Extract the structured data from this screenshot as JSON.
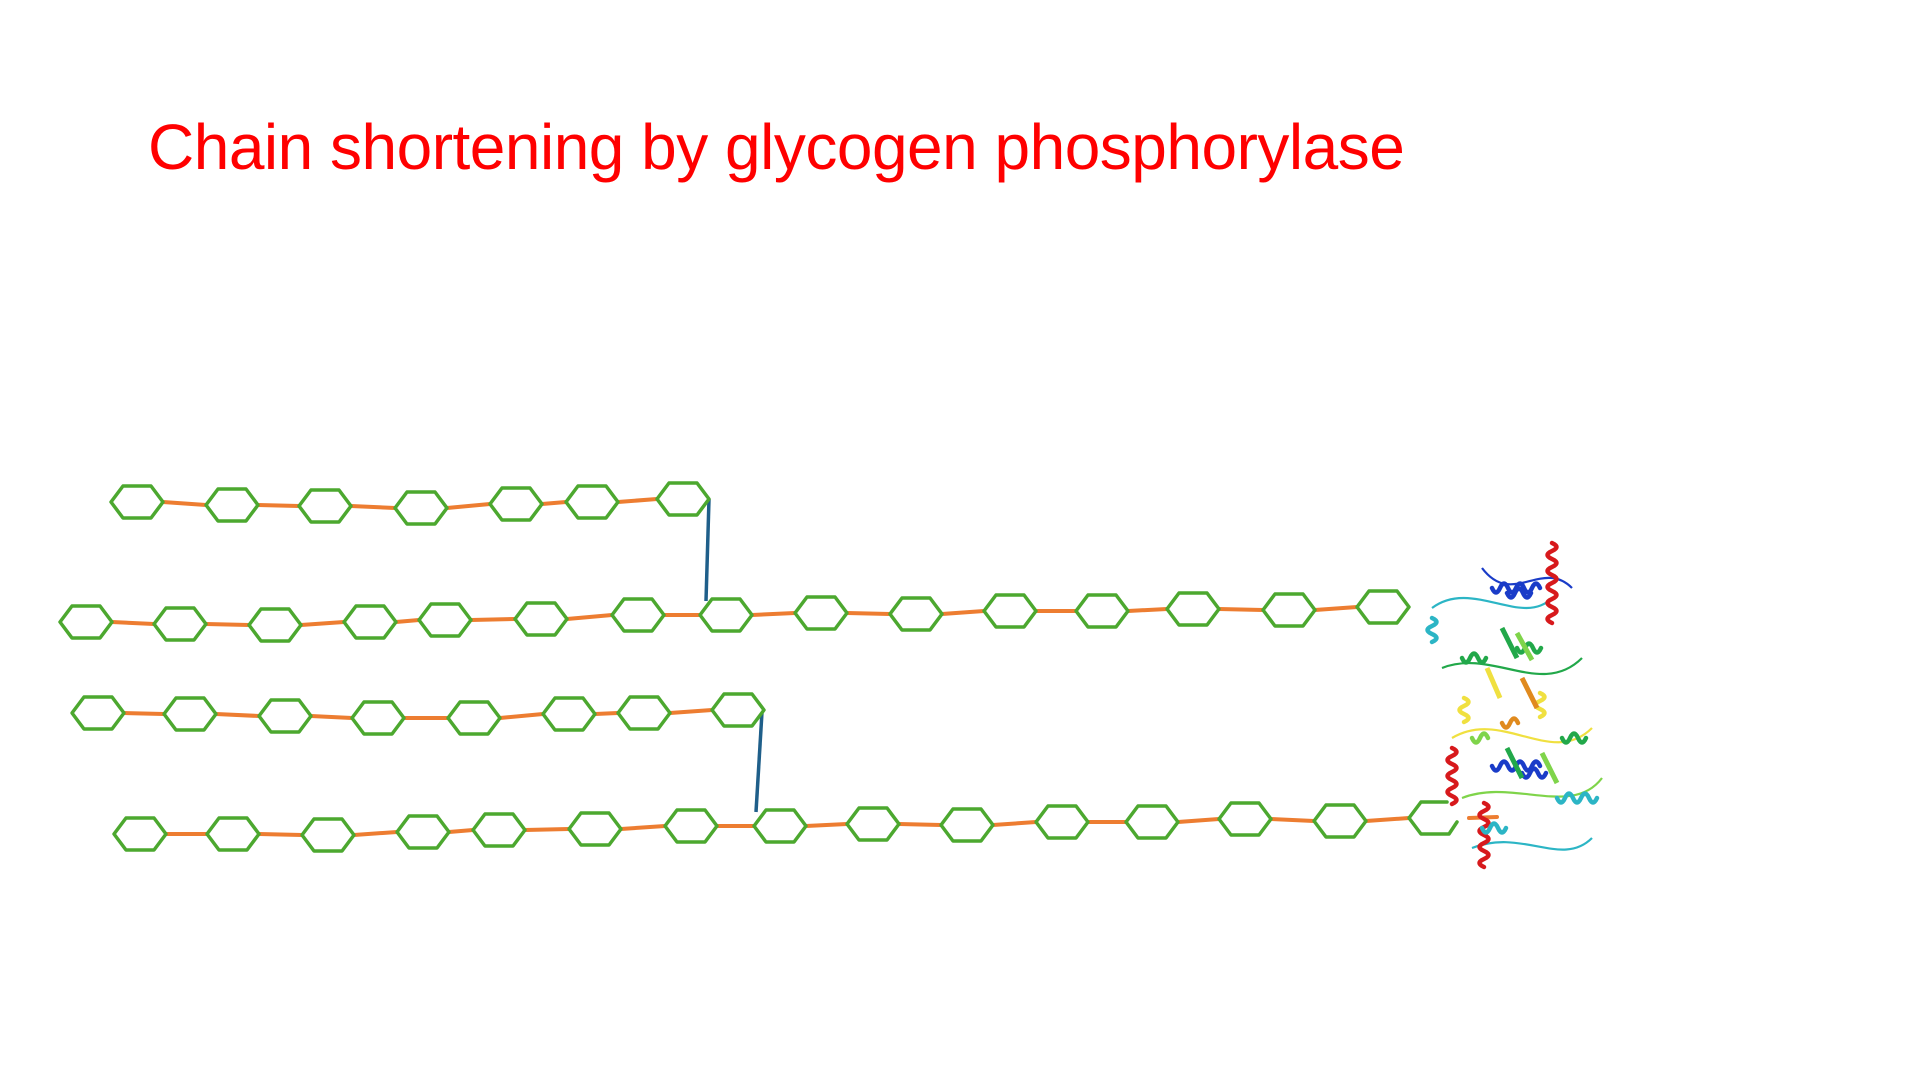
{
  "slide": {
    "title": "Chain shortening by glycogen phosphorylase"
  },
  "colors": {
    "title": "#ff0000",
    "glucose_outline": "#4ca82f",
    "glycosidic_1_4_bond": "#ed7d31",
    "glycosidic_1_6_branch": "#1f5f8a",
    "background": "#ffffff"
  },
  "diagram": {
    "unit_shape": "hexagon",
    "chains": [
      {
        "name": "branch-chain-1",
        "units": 7
      },
      {
        "name": "main-chain-1",
        "units": 15
      },
      {
        "name": "branch-chain-2",
        "units": 8
      },
      {
        "name": "main-chain-2",
        "units": 15
      }
    ],
    "branch_links": [
      {
        "name": "branch-link-1",
        "from": "branch-chain-1",
        "to": "main-chain-1"
      },
      {
        "name": "branch-link-2",
        "from": "branch-chain-2",
        "to": "main-chain-2"
      }
    ],
    "cleaved_unit": "open-hexagon",
    "enzyme": {
      "icon": "protein-ribbon-structure-icon",
      "ribbon_colors": [
        "#d7191c",
        "#1a3cc8",
        "#22a84a",
        "#f0e040",
        "#2cb5c5",
        "#e08a1e",
        "#7fd44a"
      ]
    }
  }
}
